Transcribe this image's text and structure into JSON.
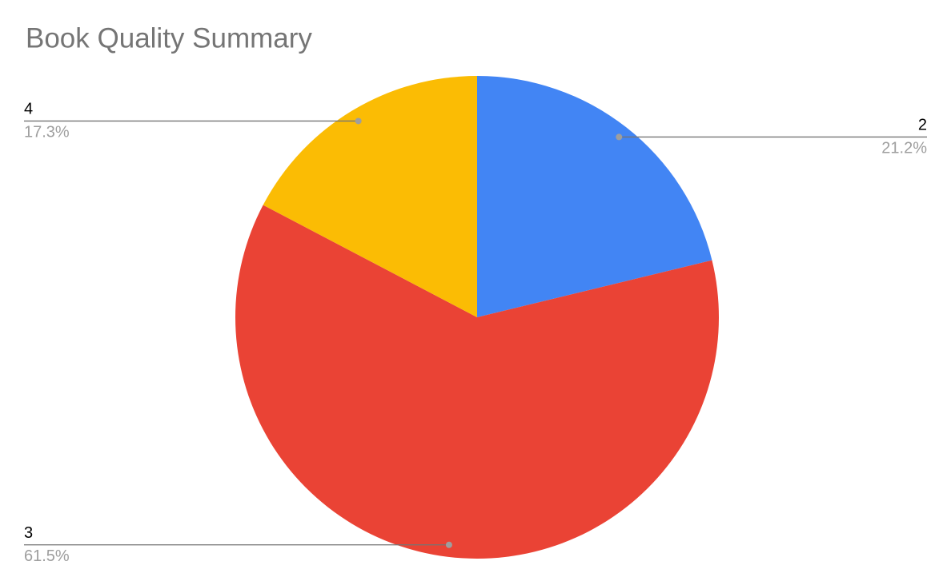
{
  "chart_data": {
    "type": "pie",
    "title": "Book Quality Summary",
    "categories": [
      "2",
      "3",
      "4"
    ],
    "values": [
      21.2,
      61.5,
      17.3
    ],
    "value_labels": [
      "21.2%",
      "61.5%",
      "17.3%"
    ],
    "colors": [
      "#4285f4",
      "#ea4335",
      "#fbbc04"
    ]
  }
}
